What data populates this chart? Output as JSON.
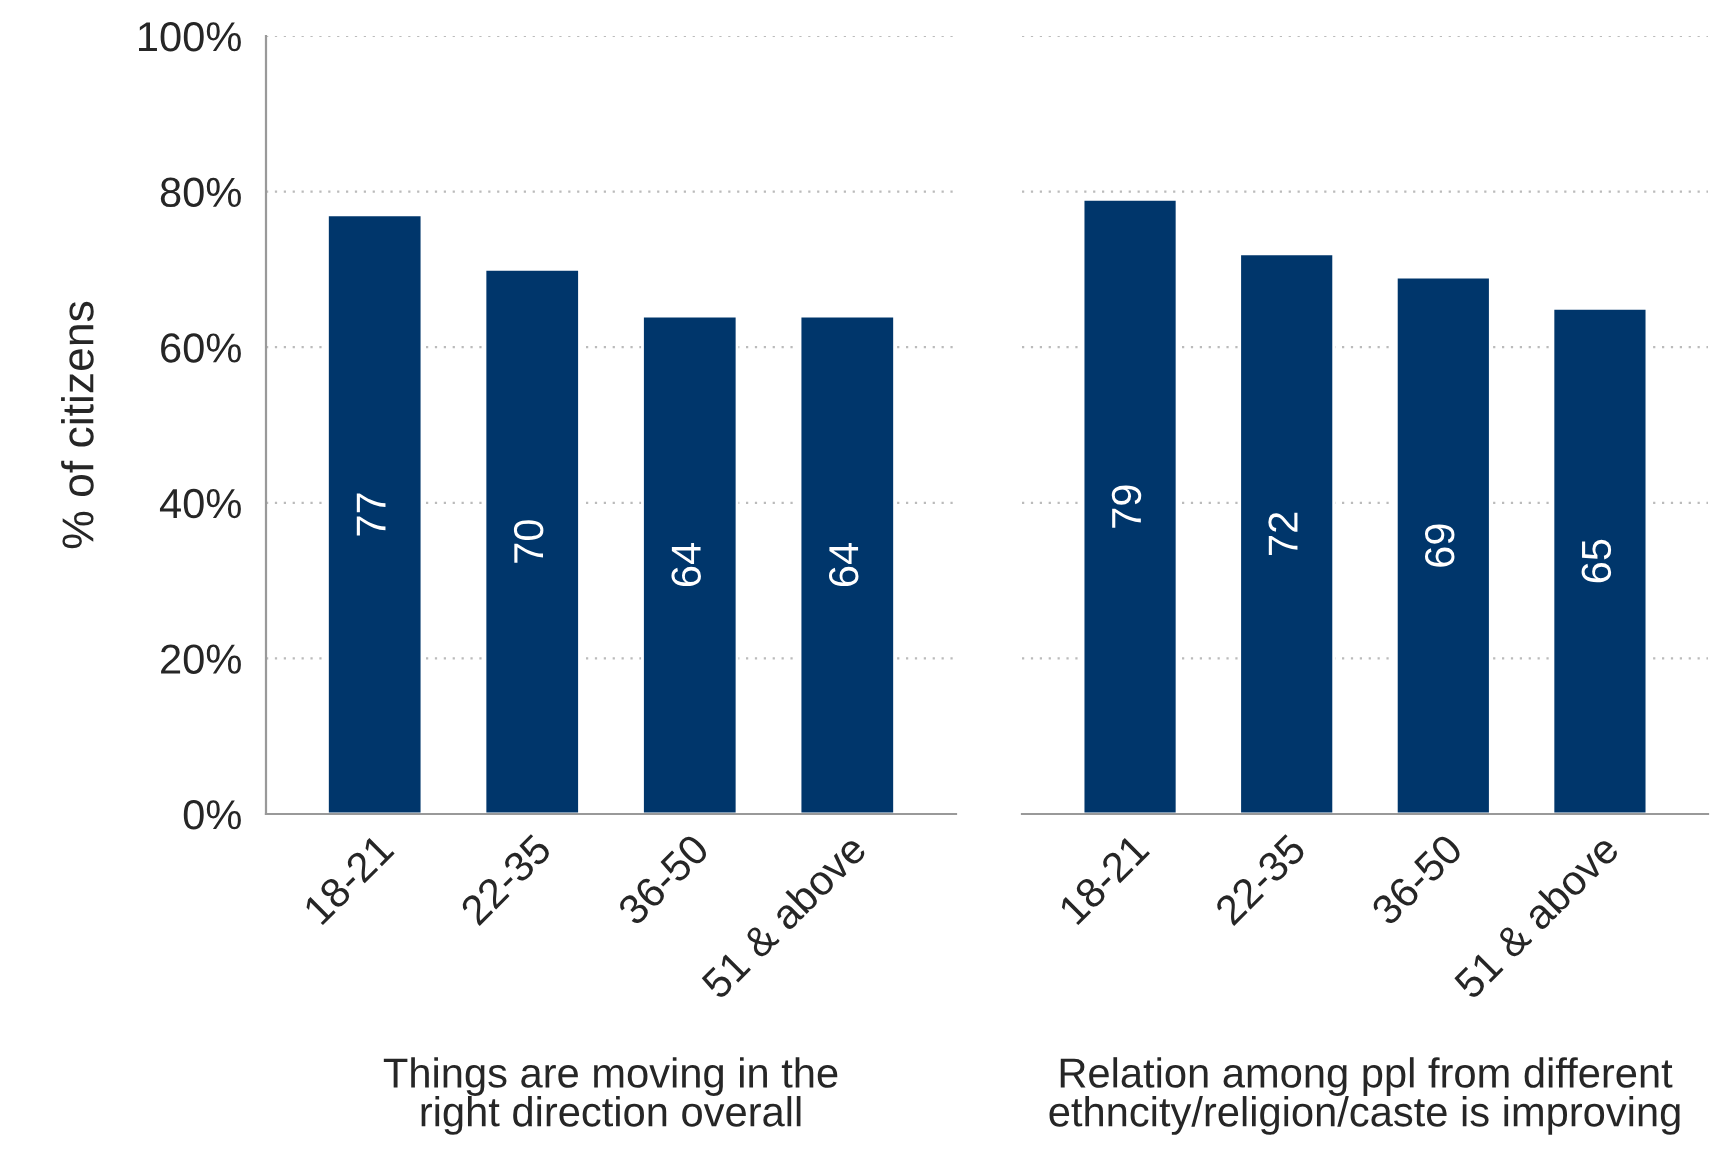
{
  "chart_data": [
    {
      "type": "bar",
      "categories": [
        "18-21",
        "22-35",
        "36-50",
        "51 & above"
      ],
      "values": [
        77,
        70,
        64,
        64
      ],
      "color": "#00366b",
      "data_labels": true,
      "xlabel": "Things are moving in the\nright direction overall",
      "ylabel": "% of citizens",
      "ylim": [
        0,
        100
      ],
      "yticks": [
        {
          "value": 0,
          "label": "0%"
        },
        {
          "value": 20,
          "label": "20%"
        },
        {
          "value": 40,
          "label": "40%"
        },
        {
          "value": 60,
          "label": "60%"
        },
        {
          "value": 80,
          "label": "80%"
        },
        {
          "value": 100,
          "label": "100%"
        }
      ],
      "grid": "y"
    },
    {
      "type": "bar",
      "categories": [
        "18-21",
        "22-35",
        "36-50",
        "51 & above"
      ],
      "values": [
        79,
        72,
        69,
        65
      ],
      "color": "#00366b",
      "data_labels": true,
      "xlabel": "Relation among ppl from different\nethncity/religion/caste is improving",
      "ylim": [
        0,
        100
      ],
      "yticks": [
        0,
        20,
        40,
        60,
        80,
        100
      ],
      "grid": "y",
      "tick_labels": "x"
    }
  ]
}
